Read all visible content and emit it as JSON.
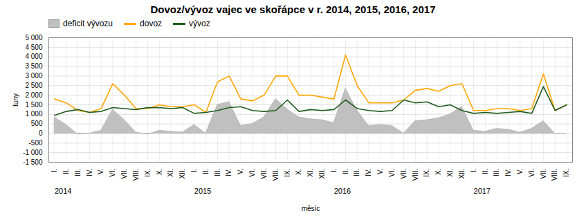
{
  "chart_data": {
    "type": "line",
    "title": "Dovoz/vývoz vajec ve skořápce v r. 2014, 2015, 2016, 2017",
    "x_label": "měsíc",
    "y_label": "tuny",
    "categories": [
      "I.",
      "II.",
      "III.",
      "IV.",
      "V.",
      "VI.",
      "VII.",
      "VIII.",
      "IX.",
      "X.",
      "XI.",
      "XII.",
      "I.",
      "II.",
      "III.",
      "IV.",
      "V.",
      "VI.",
      "VII.",
      "VIII.",
      "IX.",
      "X.",
      "XI.",
      "XII.",
      "I.",
      "II.",
      "III.",
      "IV.",
      "V.",
      "VI.",
      "VII.",
      "VIII.",
      "IX.",
      "X.",
      "XI.",
      "XII.",
      "I.",
      "II.",
      "III.",
      "IV.",
      "V.",
      "VI.",
      "VII.",
      "VIII.",
      "IX."
    ],
    "series": [
      {
        "name": "deficit vývozu",
        "type": "area",
        "color": "#C0C0C0",
        "values": [
          850,
          450,
          -50,
          0,
          150,
          1250,
          700,
          50,
          -50,
          150,
          100,
          50,
          450,
          0,
          1500,
          1650,
          400,
          500,
          850,
          1800,
          1250,
          850,
          750,
          700,
          550,
          2350,
          1200,
          400,
          450,
          400,
          0,
          650,
          700,
          800,
          1000,
          1400,
          150,
          100,
          250,
          200,
          50,
          250,
          650,
          0,
          0
        ]
      },
      {
        "name": "dovoz",
        "type": "line",
        "color": "#FFA500",
        "values": [
          1800,
          1600,
          1200,
          1100,
          1300,
          2600,
          2000,
          1300,
          1300,
          1500,
          1400,
          1400,
          1500,
          1100,
          2700,
          3000,
          1800,
          1700,
          2000,
          3000,
          3000,
          2000,
          2000,
          1900,
          1800,
          4100,
          2500,
          1600,
          1600,
          1600,
          1750,
          2250,
          2350,
          2200,
          2500,
          2600,
          1200,
          1200,
          1300,
          1300,
          1200,
          1300,
          3100,
          1200,
          1500
        ]
      },
      {
        "name": "vývoz",
        "type": "line",
        "color": "#1F5C1F",
        "values": [
          950,
          1150,
          1250,
          1100,
          1150,
          1350,
          1300,
          1250,
          1350,
          1350,
          1300,
          1350,
          1050,
          1100,
          1200,
          1350,
          1400,
          1200,
          1150,
          1200,
          1750,
          1150,
          1250,
          1200,
          1250,
          1750,
          1300,
          1200,
          1150,
          1200,
          1750,
          1600,
          1650,
          1400,
          1500,
          1200,
          1050,
          1100,
          1050,
          1100,
          1150,
          1050,
          2450,
          1200,
          1500
        ]
      }
    ],
    "annotations": [
      {
        "text": "2014",
        "x": 0
      },
      {
        "text": "2015",
        "x": 12
      },
      {
        "text": "2016",
        "x": 24
      },
      {
        "text": "2017",
        "x": 36
      }
    ],
    "ylim": [
      -1500,
      5000
    ],
    "yticks": [
      {
        "value": -1500,
        "label": "-1 500"
      },
      {
        "value": -1000,
        "label": "-1 000"
      },
      -500,
      0,
      500,
      {
        "value": 1000,
        "label": "1 000"
      },
      {
        "value": 1500,
        "label": "1 500"
      },
      {
        "value": 2000,
        "label": "2 000"
      },
      {
        "value": 2500,
        "label": "2 500"
      },
      {
        "value": 3000,
        "label": "3 000"
      },
      {
        "value": 3500,
        "label": "3 500"
      },
      {
        "value": 4000,
        "label": "4 000"
      },
      {
        "value": 4500,
        "label": "4 500"
      },
      {
        "value": 5000,
        "label": "5 000"
      }
    ],
    "grid": true,
    "legend": "upper left"
  }
}
